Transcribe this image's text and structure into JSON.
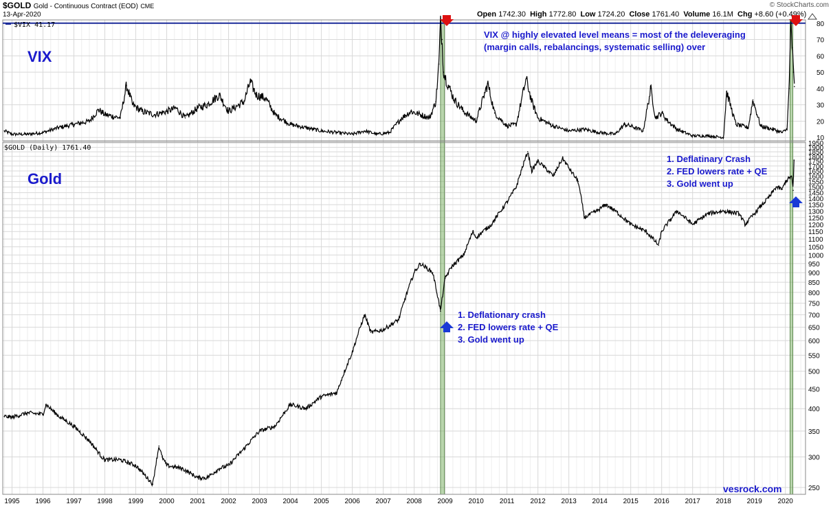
{
  "header": {
    "symbol": "$GOLD",
    "name": "Gold - Continuous Contract (EOD)",
    "exchange": "CME",
    "date": "13-Apr-2020",
    "brand": "© StockCharts.com",
    "quote": {
      "open_label": "Open",
      "open": "1742.30",
      "high_label": "High",
      "high": "1772.80",
      "low_label": "Low",
      "low": "1724.20",
      "close_label": "Close",
      "close": "1761.40",
      "volume_label": "Volume",
      "volume": "16.1M",
      "chg_label": "Chg",
      "chg": "+8.60 (+0.49%)"
    }
  },
  "chart_data": [
    {
      "type": "line",
      "panel": "top",
      "legend": "$VIX 41.17",
      "label": "VIX",
      "ylim": [
        8,
        82
      ],
      "yticks": [
        10,
        20,
        30,
        40,
        50,
        60,
        70,
        80
      ],
      "reference_line": 80,
      "series": [
        {
          "x": [
            1994.75,
            1995.0,
            1995.5,
            1996.0,
            1996.5,
            1997.0,
            1997.5,
            1997.8,
            1998.0,
            1998.5,
            1998.7,
            1998.9,
            1999.2,
            1999.6,
            2000.0,
            2000.3,
            2000.6,
            2001.0,
            2001.3,
            2001.7,
            2002.0,
            2002.5,
            2002.7,
            2002.9,
            2003.2,
            2003.5,
            2004.0,
            2004.5,
            2005.0,
            2005.5,
            2006.0,
            2006.4,
            2006.8,
            2007.2,
            2007.6,
            2007.9,
            2008.2,
            2008.5,
            2008.7,
            2008.8,
            2008.85,
            2008.9,
            2008.95,
            2009.1,
            2009.3,
            2009.6,
            2010.0,
            2010.38,
            2010.6,
            2011.0,
            2011.3,
            2011.62,
            2011.8,
            2012.0,
            2012.5,
            2013.0,
            2013.5,
            2014.0,
            2014.5,
            2014.8,
            2015.0,
            2015.4,
            2015.65,
            2015.8,
            2016.0,
            2016.2,
            2016.5,
            2017.0,
            2017.5,
            2018.0,
            2018.1,
            2018.4,
            2018.8,
            2018.95,
            2019.2,
            2019.6,
            2019.9,
            2020.05,
            2020.12,
            2020.18,
            2020.22,
            2020.26,
            2020.29
          ],
          "values": [
            14,
            12,
            12,
            13,
            16,
            18,
            20,
            27,
            24,
            22,
            42,
            30,
            26,
            24,
            26,
            28,
            22,
            28,
            30,
            36,
            26,
            32,
            44,
            36,
            34,
            24,
            18,
            16,
            14,
            13,
            12,
            14,
            12,
            13,
            22,
            26,
            24,
            22,
            32,
            55,
            80,
            70,
            50,
            42,
            33,
            26,
            20,
            43,
            25,
            17,
            18,
            46,
            32,
            22,
            17,
            14,
            15,
            13,
            12,
            18,
            17,
            14,
            40,
            22,
            25,
            20,
            15,
            11,
            11,
            10,
            38,
            18,
            16,
            33,
            17,
            15,
            13,
            15,
            40,
            82,
            65,
            50,
            41.17
          ]
        }
      ]
    },
    {
      "type": "line",
      "panel": "bottom",
      "legend": "$GOLD (Daily) 1761.40",
      "label": "Gold",
      "scale": "log",
      "ylim": [
        240,
        1960
      ],
      "yticks": [
        250,
        300,
        350,
        400,
        450,
        500,
        550,
        600,
        650,
        700,
        750,
        800,
        850,
        900,
        950,
        1000,
        1050,
        1100,
        1150,
        1200,
        1250,
        1300,
        1350,
        1400,
        1450,
        1500,
        1550,
        1600,
        1650,
        1700,
        1750,
        1800,
        1850,
        1900,
        1950
      ],
      "xticks": [
        "1995",
        "1996",
        "1997",
        "1998",
        "1999",
        "2000",
        "2001",
        "2002",
        "2003",
        "2004",
        "2005",
        "2006",
        "2007",
        "2008",
        "2009",
        "2010",
        "2011",
        "2012",
        "2013",
        "2014",
        "2015",
        "2016",
        "2017",
        "2018",
        "2019",
        "2020"
      ],
      "xlim": [
        1994.7,
        2020.65
      ],
      "series": [
        {
          "x": [
            1994.75,
            1995.0,
            1995.5,
            1996.0,
            1996.1,
            1996.5,
            1997.0,
            1997.5,
            1997.9,
            1998.0,
            1998.5,
            1999.0,
            1999.55,
            1999.75,
            1999.85,
            2000.0,
            2000.5,
            2001.0,
            2001.3,
            2001.7,
            2002.0,
            2002.5,
            2003.0,
            2003.5,
            2004.0,
            2004.5,
            2005.0,
            2005.5,
            2006.0,
            2006.4,
            2006.6,
            2007.0,
            2007.5,
            2008.0,
            2008.2,
            2008.6,
            2008.85,
            2009.0,
            2009.2,
            2009.6,
            2009.9,
            2010.0,
            2010.5,
            2011.0,
            2011.3,
            2011.67,
            2011.8,
            2012.0,
            2012.5,
            2012.8,
            2013.0,
            2013.3,
            2013.5,
            2013.9,
            2014.2,
            2014.5,
            2015.0,
            2015.5,
            2015.9,
            2016.0,
            2016.5,
            2017.0,
            2017.5,
            2018.0,
            2018.5,
            2018.7,
            2019.0,
            2019.5,
            2019.7,
            2019.9,
            2020.0,
            2020.2,
            2020.25,
            2020.28
          ],
          "values": [
            382,
            380,
            390,
            387,
            410,
            383,
            360,
            330,
            300,
            295,
            295,
            285,
            255,
            320,
            300,
            285,
            280,
            265,
            265,
            280,
            285,
            315,
            350,
            360,
            410,
            400,
            430,
            440,
            560,
            700,
            630,
            640,
            680,
            900,
            950,
            900,
            715,
            870,
            930,
            1000,
            1150,
            1110,
            1200,
            1370,
            1500,
            1850,
            1650,
            1750,
            1600,
            1780,
            1680,
            1550,
            1250,
            1300,
            1350,
            1300,
            1200,
            1150,
            1060,
            1150,
            1300,
            1200,
            1280,
            1300,
            1280,
            1200,
            1280,
            1420,
            1500,
            1480,
            1550,
            1600,
            1470,
            1761.4
          ]
        }
      ]
    }
  ],
  "annotations": {
    "vix_label": "VIX",
    "gold_label": "Gold",
    "vix_note_line1": "VIX @ highly elevated level means = most of the deleveraging",
    "vix_note_line2": "(margin calls, rebalancings, systematic selling) over",
    "crash2008": [
      "1. Deflationary crash",
      "2. FED lowers rate + QE",
      "3. Gold went up"
    ],
    "crash2020": [
      "1. Deflatinary Crash",
      "2. FED lowers rate + QE",
      "3. Gold went up"
    ],
    "watermark": "vesrock.com"
  },
  "colors": {
    "line": "#000000",
    "grid": "#d8d8d8",
    "reference": "#1a2a99",
    "annotation": "#1a1acc",
    "highlight": "#7fb36a",
    "arrow_down": "#dd1111",
    "arrow_up": "#1a3ad6"
  }
}
